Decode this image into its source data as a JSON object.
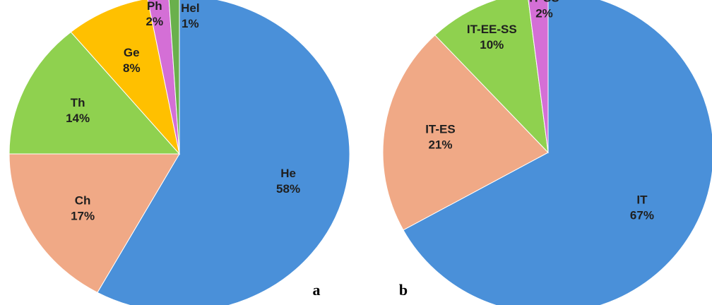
{
  "chart_data": [
    {
      "type": "pie",
      "panel_label": "a",
      "slices": [
        {
          "label": "He",
          "percent_label": "58%",
          "value": 58,
          "color": "#4a90d9"
        },
        {
          "label": "Ch",
          "percent_label": "17%",
          "value": 17,
          "color": "#f0a986"
        },
        {
          "label": "Th",
          "percent_label": "14%",
          "value": 14,
          "color": "#8fd14f"
        },
        {
          "label": "Ge",
          "percent_label": "8%",
          "value": 8,
          "color": "#ffc000"
        },
        {
          "label": "Ph",
          "percent_label": "2%",
          "value": 2,
          "color": "#d46fd6"
        },
        {
          "label": "Hel",
          "percent_label": "1%",
          "value": 1,
          "color": "#6ab04c"
        }
      ]
    },
    {
      "type": "pie",
      "panel_label": "b",
      "slices": [
        {
          "label": "IT",
          "percent_label": "67%",
          "value": 67,
          "color": "#4a90d9"
        },
        {
          "label": "IT-ES",
          "percent_label": "21%",
          "value": 21,
          "color": "#f0a986"
        },
        {
          "label": "IT-EE-SS",
          "percent_label": "10%",
          "value": 10,
          "color": "#8fd14f"
        },
        {
          "label": "IT-SS",
          "percent_label": "2%",
          "value": 2,
          "color": "#d46fd6"
        }
      ]
    }
  ]
}
